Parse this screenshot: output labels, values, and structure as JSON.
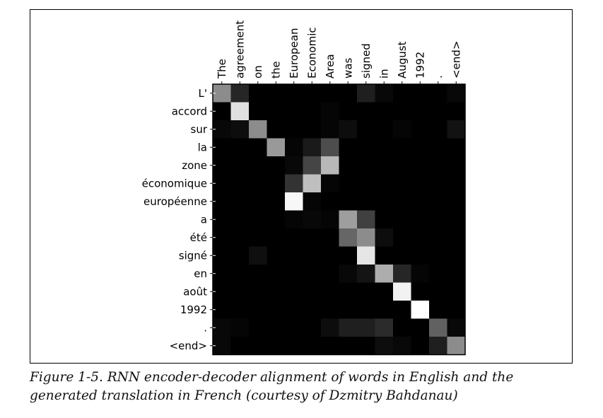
{
  "caption": "Figure 1-5. RNN encoder-decoder alignment of words in English and the generated translation in French (courtesy of Dzmitry Bahdanau)",
  "chart_data": {
    "type": "heatmap",
    "colormap": "grayscale (black = 0, white = 1)",
    "x_categories": [
      "The",
      "agreement",
      "on",
      "the",
      "European",
      "Economic",
      "Area",
      "was",
      "signed",
      "in",
      "August",
      "1992",
      ".",
      "<end>"
    ],
    "y_categories": [
      "L'",
      "accord",
      "sur",
      "la",
      "zone",
      "économique",
      "européenne",
      "a",
      "été",
      "signé",
      "en",
      "août",
      "1992",
      ".",
      "<end>"
    ],
    "values": [
      [
        0.55,
        0.15,
        0,
        0,
        0,
        0,
        0,
        0,
        0.12,
        0.03,
        0,
        0,
        0,
        0.03
      ],
      [
        0,
        0.88,
        0,
        0,
        0,
        0,
        0.02,
        0,
        0,
        0,
        0,
        0,
        0,
        0
      ],
      [
        0.03,
        0.05,
        0.55,
        0,
        0,
        0,
        0.02,
        0.05,
        0,
        0,
        0.02,
        0,
        0,
        0.07
      ],
      [
        0,
        0,
        0,
        0.6,
        0.02,
        0.1,
        0.3,
        0,
        0,
        0,
        0,
        0,
        0,
        0
      ],
      [
        0,
        0,
        0,
        0,
        0.03,
        0.27,
        0.72,
        0,
        0,
        0,
        0,
        0,
        0,
        0
      ],
      [
        0,
        0,
        0,
        0,
        0.2,
        0.75,
        0.02,
        0,
        0,
        0,
        0,
        0,
        0,
        0
      ],
      [
        0,
        0,
        0,
        0,
        0.97,
        0.02,
        0,
        0,
        0,
        0,
        0,
        0,
        0,
        0
      ],
      [
        0,
        0,
        0,
        0,
        0.02,
        0.03,
        0.02,
        0.62,
        0.25,
        0,
        0,
        0,
        0,
        0
      ],
      [
        0,
        0,
        0,
        0,
        0,
        0,
        0,
        0.4,
        0.55,
        0.05,
        0,
        0,
        0,
        0
      ],
      [
        0,
        0,
        0.06,
        0,
        0,
        0,
        0,
        0,
        0.9,
        0,
        0,
        0,
        0,
        0
      ],
      [
        0,
        0,
        0,
        0,
        0,
        0,
        0,
        0.03,
        0.08,
        0.68,
        0.15,
        0.02,
        0,
        0
      ],
      [
        0,
        0,
        0,
        0,
        0,
        0,
        0,
        0,
        0,
        0,
        0.95,
        0,
        0,
        0
      ],
      [
        0,
        0,
        0,
        0,
        0,
        0,
        0,
        0,
        0,
        0,
        0,
        1.0,
        0,
        0
      ],
      [
        0.03,
        0.02,
        0,
        0,
        0,
        0,
        0.05,
        0.12,
        0.12,
        0.17,
        0,
        0,
        0.38,
        0.03
      ],
      [
        0.03,
        0,
        0,
        0,
        0,
        0,
        0,
        0,
        0,
        0.05,
        0.03,
        0,
        0.12,
        0.55
      ]
    ],
    "title": "",
    "xlabel": "",
    "ylabel": "",
    "x_tick_position": "top",
    "grid": false,
    "legend": "none"
  }
}
